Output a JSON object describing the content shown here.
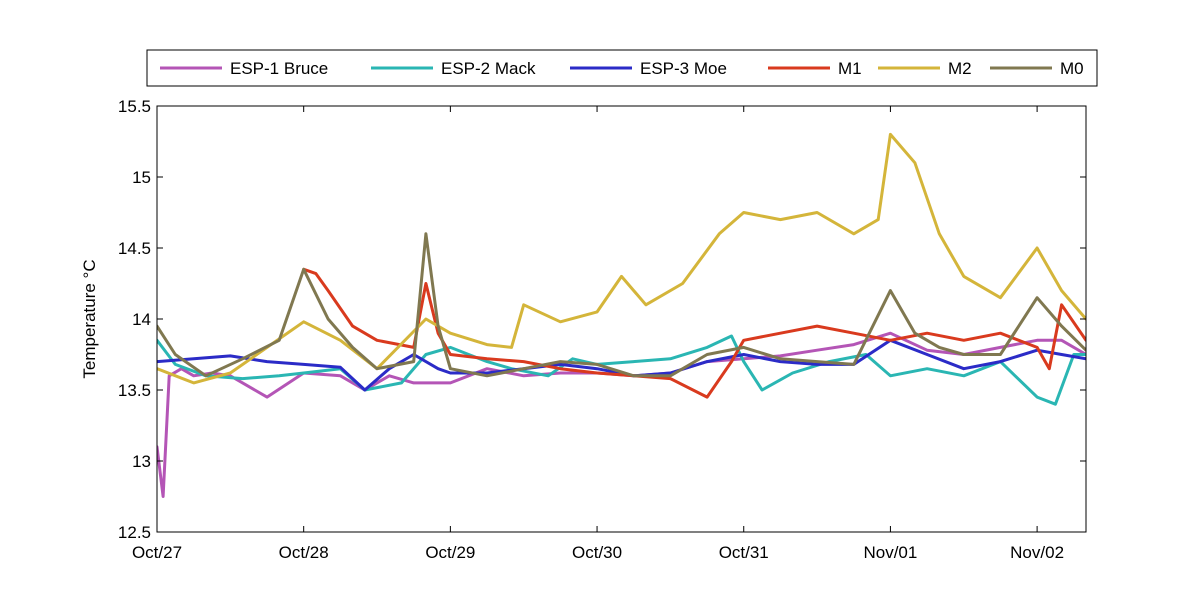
{
  "chart_data": {
    "type": "line",
    "title": "",
    "xlabel": "",
    "ylabel": "Temperature °C",
    "xlim": [
      "2011-10-27",
      "2011-11-02T08:00"
    ],
    "ylim": [
      12.5,
      15.5
    ],
    "yticks": [
      12.5,
      13,
      13.5,
      14,
      14.5,
      15,
      15.5
    ],
    "ytick_labels": [
      "12.5",
      "13",
      "13.5",
      "14",
      "14.5",
      "15",
      "15.5"
    ],
    "xticks": [
      "2011-10-27",
      "2011-10-28",
      "2011-10-29",
      "2011-10-30",
      "2011-10-31",
      "2011-11-01",
      "2011-11-02"
    ],
    "xtick_labels": [
      "Oct/27",
      "Oct/28",
      "Oct/29",
      "Oct/30",
      "Oct/31",
      "Nov/01",
      "Nov/02"
    ],
    "grid": false,
    "legend_position": "top, outside plot, horizontal",
    "series": [
      {
        "name": "ESP-1 Bruce",
        "color": "#b455b6",
        "points": [
          [
            "2011-10-27",
            13.1
          ],
          [
            "2011-10-27T01:00",
            12.75
          ],
          [
            "2011-10-27T02:00",
            13.6
          ],
          [
            "2011-10-27T04:00",
            13.65
          ],
          [
            "2011-10-27T06:00",
            13.6
          ],
          [
            "2011-10-27T09:00",
            13.62
          ],
          [
            "2011-10-27T12:00",
            13.6
          ],
          [
            "2011-10-27T18:00",
            13.45
          ],
          [
            "2011-10-28",
            13.62
          ],
          [
            "2011-10-28T06:00",
            13.6
          ],
          [
            "2011-10-28T10:00",
            13.5
          ],
          [
            "2011-10-28T14:00",
            13.6
          ],
          [
            "2011-10-28T18:00",
            13.55
          ],
          [
            "2011-10-29",
            13.55
          ],
          [
            "2011-10-29T06:00",
            13.65
          ],
          [
            "2011-10-29T12:00",
            13.6
          ],
          [
            "2011-10-29T18:00",
            13.62
          ],
          [
            "2011-10-30",
            13.62
          ],
          [
            "2011-10-30T06:00",
            13.6
          ],
          [
            "2011-10-30T12:00",
            13.62
          ],
          [
            "2011-10-30T18:00",
            13.7
          ],
          [
            "2011-10-31",
            13.72
          ],
          [
            "2011-10-31T06:00",
            13.74
          ],
          [
            "2011-10-31T12:00",
            13.78
          ],
          [
            "2011-10-31T18:00",
            13.82
          ],
          [
            "2011-11-01",
            13.9
          ],
          [
            "2011-11-01T06:00",
            13.78
          ],
          [
            "2011-11-01T12:00",
            13.75
          ],
          [
            "2011-11-01T18:00",
            13.8
          ],
          [
            "2011-11-02",
            13.85
          ],
          [
            "2011-11-02T04:00",
            13.85
          ],
          [
            "2011-11-02T08:00",
            13.75
          ]
        ]
      },
      {
        "name": "ESP-2 Mack",
        "color": "#2ab6b3",
        "points": [
          [
            "2011-10-27",
            13.85
          ],
          [
            "2011-10-27T03:00",
            13.68
          ],
          [
            "2011-10-27T08:00",
            13.6
          ],
          [
            "2011-10-27T14:00",
            13.58
          ],
          [
            "2011-10-27T20:00",
            13.6
          ],
          [
            "2011-10-28",
            13.62
          ],
          [
            "2011-10-28T06:00",
            13.65
          ],
          [
            "2011-10-28T10:00",
            13.5
          ],
          [
            "2011-10-28T16:00",
            13.55
          ],
          [
            "2011-10-28T20:00",
            13.75
          ],
          [
            "2011-10-29",
            13.8
          ],
          [
            "2011-10-29T06:00",
            13.7
          ],
          [
            "2011-10-29T10:00",
            13.65
          ],
          [
            "2011-10-29T16:00",
            13.6
          ],
          [
            "2011-10-29T20:00",
            13.72
          ],
          [
            "2011-10-30",
            13.68
          ],
          [
            "2011-10-30T06:00",
            13.7
          ],
          [
            "2011-10-30T12:00",
            13.72
          ],
          [
            "2011-10-30T18:00",
            13.8
          ],
          [
            "2011-10-30T22:00",
            13.88
          ],
          [
            "2011-10-31",
            13.7
          ],
          [
            "2011-10-31T03:00",
            13.5
          ],
          [
            "2011-10-31T08:00",
            13.62
          ],
          [
            "2011-10-31T14:00",
            13.7
          ],
          [
            "2011-10-31T20:00",
            13.75
          ],
          [
            "2011-11-01",
            13.6
          ],
          [
            "2011-11-01T06:00",
            13.65
          ],
          [
            "2011-11-01T12:00",
            13.6
          ],
          [
            "2011-11-01T18:00",
            13.7
          ],
          [
            "2011-11-02",
            13.45
          ],
          [
            "2011-11-02T03:00",
            13.4
          ],
          [
            "2011-11-02T06:00",
            13.75
          ],
          [
            "2011-11-02T08:00",
            13.75
          ]
        ]
      },
      {
        "name": "ESP-3 Moe",
        "color": "#2b2bc7",
        "points": [
          [
            "2011-10-27",
            13.7
          ],
          [
            "2011-10-27T06:00",
            13.72
          ],
          [
            "2011-10-27T12:00",
            13.74
          ],
          [
            "2011-10-27T18:00",
            13.7
          ],
          [
            "2011-10-28",
            13.68
          ],
          [
            "2011-10-28T06:00",
            13.66
          ],
          [
            "2011-10-28T10:00",
            13.5
          ],
          [
            "2011-10-28T14:00",
            13.65
          ],
          [
            "2011-10-28T18:00",
            13.75
          ],
          [
            "2011-10-28T22:00",
            13.65
          ],
          [
            "2011-10-29",
            13.62
          ],
          [
            "2011-10-29T06:00",
            13.62
          ],
          [
            "2011-10-29T12:00",
            13.65
          ],
          [
            "2011-10-29T18:00",
            13.68
          ],
          [
            "2011-10-30",
            13.65
          ],
          [
            "2011-10-30T06:00",
            13.6
          ],
          [
            "2011-10-30T12:00",
            13.62
          ],
          [
            "2011-10-30T18:00",
            13.7
          ],
          [
            "2011-10-31",
            13.75
          ],
          [
            "2011-10-31T06:00",
            13.7
          ],
          [
            "2011-10-31T12:00",
            13.68
          ],
          [
            "2011-10-31T18:00",
            13.68
          ],
          [
            "2011-11-01",
            13.85
          ],
          [
            "2011-11-01T06:00",
            13.75
          ],
          [
            "2011-11-01T12:00",
            13.65
          ],
          [
            "2011-11-01T18:00",
            13.7
          ],
          [
            "2011-11-02",
            13.78
          ],
          [
            "2011-11-02T04:00",
            13.75
          ],
          [
            "2011-11-02T08:00",
            13.72
          ]
        ]
      },
      {
        "name": "M1",
        "color": "#d93a1e",
        "points": [
          [
            "2011-10-28",
            14.35
          ],
          [
            "2011-10-28T02:00",
            14.32
          ],
          [
            "2011-10-28T04:00",
            14.2
          ],
          [
            "2011-10-28T08:00",
            13.95
          ],
          [
            "2011-10-28T12:00",
            13.85
          ],
          [
            "2011-10-28T18:00",
            13.8
          ],
          [
            "2011-10-28T20:00",
            14.25
          ],
          [
            "2011-10-28T22:00",
            13.9
          ],
          [
            "2011-10-29",
            13.75
          ],
          [
            "2011-10-29T06:00",
            13.72
          ],
          [
            "2011-10-29T12:00",
            13.7
          ],
          [
            "2011-10-29T18:00",
            13.65
          ],
          [
            "2011-10-30",
            13.62
          ],
          [
            "2011-10-30T06:00",
            13.6
          ],
          [
            "2011-10-30T12:00",
            13.58
          ],
          [
            "2011-10-30T18:00",
            13.45
          ],
          [
            "2011-10-30T22:00",
            13.7
          ],
          [
            "2011-10-31",
            13.85
          ],
          [
            "2011-10-31T06:00",
            13.9
          ],
          [
            "2011-10-31T12:00",
            13.95
          ],
          [
            "2011-10-31T18:00",
            13.9
          ],
          [
            "2011-11-01",
            13.85
          ],
          [
            "2011-11-01T06:00",
            13.9
          ],
          [
            "2011-11-01T12:00",
            13.85
          ],
          [
            "2011-11-01T18:00",
            13.9
          ],
          [
            "2011-11-02",
            13.8
          ],
          [
            "2011-11-02T02:00",
            13.65
          ],
          [
            "2011-11-02T04:00",
            14.1
          ],
          [
            "2011-11-02T08:00",
            13.85
          ]
        ]
      },
      {
        "name": "M2",
        "color": "#d4b53a",
        "points": [
          [
            "2011-10-27",
            13.65
          ],
          [
            "2011-10-27T06:00",
            13.55
          ],
          [
            "2011-10-27T12:00",
            13.62
          ],
          [
            "2011-10-27T18:00",
            13.8
          ],
          [
            "2011-10-28",
            13.98
          ],
          [
            "2011-10-28T06:00",
            13.85
          ],
          [
            "2011-10-28T12:00",
            13.65
          ],
          [
            "2011-10-28T20:00",
            14.0
          ],
          [
            "2011-10-29",
            13.9
          ],
          [
            "2011-10-29T06:00",
            13.82
          ],
          [
            "2011-10-29T10:00",
            13.8
          ],
          [
            "2011-10-29T12:00",
            14.1
          ],
          [
            "2011-10-29T18:00",
            13.98
          ],
          [
            "2011-10-30",
            14.05
          ],
          [
            "2011-10-30T04:00",
            14.3
          ],
          [
            "2011-10-30T08:00",
            14.1
          ],
          [
            "2011-10-30T14:00",
            14.25
          ],
          [
            "2011-10-30T20:00",
            14.6
          ],
          [
            "2011-10-31",
            14.75
          ],
          [
            "2011-10-31T06:00",
            14.7
          ],
          [
            "2011-10-31T12:00",
            14.75
          ],
          [
            "2011-10-31T18:00",
            14.6
          ],
          [
            "2011-10-31T22:00",
            14.7
          ],
          [
            "2011-11-01",
            15.3
          ],
          [
            "2011-11-01T04:00",
            15.1
          ],
          [
            "2011-11-01T08:00",
            14.6
          ],
          [
            "2011-11-01T12:00",
            14.3
          ],
          [
            "2011-11-01T18:00",
            14.15
          ],
          [
            "2011-11-02",
            14.5
          ],
          [
            "2011-11-02T04:00",
            14.2
          ],
          [
            "2011-11-02T08:00",
            14.0
          ]
        ]
      },
      {
        "name": "M0",
        "color": "#807850",
        "points": [
          [
            "2011-10-27",
            13.95
          ],
          [
            "2011-10-27T03:00",
            13.75
          ],
          [
            "2011-10-27T08:00",
            13.6
          ],
          [
            "2011-10-27T14:00",
            13.72
          ],
          [
            "2011-10-27T20:00",
            13.85
          ],
          [
            "2011-10-28",
            14.35
          ],
          [
            "2011-10-28T04:00",
            14.0
          ],
          [
            "2011-10-28T08:00",
            13.8
          ],
          [
            "2011-10-28T12:00",
            13.65
          ],
          [
            "2011-10-28T18:00",
            13.7
          ],
          [
            "2011-10-28T20:00",
            14.6
          ],
          [
            "2011-10-28T22:00",
            13.95
          ],
          [
            "2011-10-29",
            13.65
          ],
          [
            "2011-10-29T06:00",
            13.6
          ],
          [
            "2011-10-29T12:00",
            13.65
          ],
          [
            "2011-10-29T18:00",
            13.7
          ],
          [
            "2011-10-30",
            13.68
          ],
          [
            "2011-10-30T06:00",
            13.6
          ],
          [
            "2011-10-30T12:00",
            13.6
          ],
          [
            "2011-10-30T18:00",
            13.75
          ],
          [
            "2011-10-31",
            13.8
          ],
          [
            "2011-10-31T06:00",
            13.72
          ],
          [
            "2011-10-31T12:00",
            13.7
          ],
          [
            "2011-10-31T18:00",
            13.68
          ],
          [
            "2011-11-01",
            14.2
          ],
          [
            "2011-11-01T04:00",
            13.9
          ],
          [
            "2011-11-01T08:00",
            13.8
          ],
          [
            "2011-11-01T12:00",
            13.75
          ],
          [
            "2011-11-01T18:00",
            13.75
          ],
          [
            "2011-11-02",
            14.15
          ],
          [
            "2011-11-02T04:00",
            13.95
          ],
          [
            "2011-11-02T08:00",
            13.78
          ]
        ]
      }
    ]
  }
}
